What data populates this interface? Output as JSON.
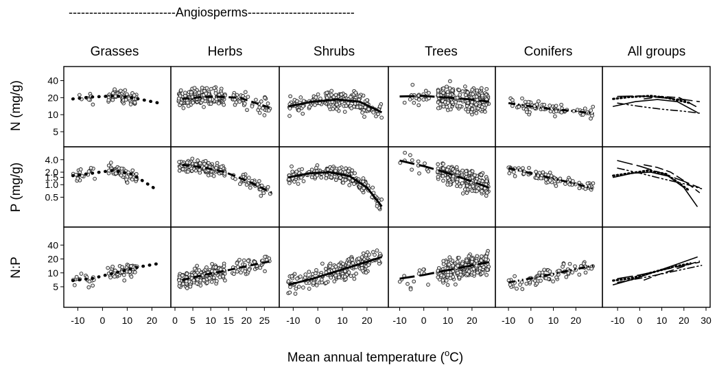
{
  "banner": "--------------------------Angiosperms--------------------------",
  "xlabel": "Mean annual temperature (",
  "xlabel_sup": "o",
  "xlabel_unit": "C)",
  "chart_data": {
    "type": "scatter",
    "layout": "small multiples grid, 3 rows x 6 columns",
    "groups": [
      "Grasses",
      "Herbs",
      "Shrubs",
      "Trees",
      "Conifers",
      "All groups"
    ],
    "rows": [
      {
        "key": "N",
        "label": "N (mg/g)",
        "ticks": [
          5,
          10,
          20,
          40
        ],
        "tick_labels": [
          "5",
          "10",
          "20",
          "40"
        ],
        "scale": "log",
        "ylim": [
          3.2,
          60
        ]
      },
      {
        "key": "P",
        "label": "P (mg/g)",
        "ticks": [
          0.5,
          1.0,
          1.5,
          2.0,
          4.0
        ],
        "tick_labels": [
          "0.5",
          "1.0",
          "1.5",
          "2.0",
          "4.0"
        ],
        "scale": "log",
        "ylim": [
          0.12,
          6.5
        ]
      },
      {
        "key": "NP",
        "label": "N:P",
        "ticks": [
          5,
          10,
          20,
          40
        ],
        "tick_labels": [
          "5",
          "10",
          "20",
          "40"
        ],
        "scale": "log",
        "ylim": [
          2.2,
          80
        ]
      }
    ],
    "x_axes": [
      {
        "ticks": [
          -10,
          0,
          10,
          20
        ],
        "xlim": [
          -14,
          26
        ]
      },
      {
        "ticks": [
          0,
          5,
          10,
          15,
          20,
          25
        ],
        "xlim": [
          0,
          28
        ]
      },
      {
        "ticks": [
          -10,
          0,
          10,
          20
        ],
        "xlim": [
          -14,
          27
        ]
      },
      {
        "ticks": [
          -10,
          0,
          10,
          20
        ],
        "xlim": [
          -13,
          28
        ]
      },
      {
        "ticks": [
          -10,
          0,
          10,
          20
        ],
        "xlim": [
          -14,
          30
        ]
      },
      {
        "ticks": [
          -10,
          0,
          10,
          20,
          30
        ],
        "xlim": [
          -15,
          30
        ]
      }
    ],
    "trends": {
      "N": [
        [
          [
            -12,
            19
          ],
          [
            -5,
            20.5
          ],
          [
            5,
            21.5
          ],
          [
            12,
            20
          ],
          [
            23,
            16
          ]
        ],
        [
          [
            2,
            19
          ],
          [
            10,
            21
          ],
          [
            18,
            20
          ],
          [
            27,
            13
          ]
        ],
        [
          [
            -12,
            14
          ],
          [
            -2,
            17
          ],
          [
            8,
            18.5
          ],
          [
            17,
            17
          ],
          [
            26,
            11
          ]
        ],
        [
          [
            -10,
            21
          ],
          [
            0,
            21.5
          ],
          [
            10,
            20
          ],
          [
            20,
            18.5
          ],
          [
            27,
            17
          ]
        ],
        [
          [
            -10,
            16
          ],
          [
            0,
            14
          ],
          [
            10,
            12.5
          ],
          [
            20,
            11.5
          ],
          [
            28,
            10.5
          ]
        ]
      ],
      "P": [
        [
          [
            -12,
            1.65
          ],
          [
            -4,
            1.9
          ],
          [
            4,
            2.2
          ],
          [
            12,
            1.8
          ],
          [
            22,
            0.75
          ]
        ],
        [
          [
            2,
            3.0
          ],
          [
            8,
            2.6
          ],
          [
            14,
            2.0
          ],
          [
            20,
            1.25
          ],
          [
            27,
            0.65
          ]
        ],
        [
          [
            -12,
            1.5
          ],
          [
            -3,
            1.9
          ],
          [
            5,
            2.0
          ],
          [
            13,
            1.6
          ],
          [
            20,
            0.85
          ],
          [
            26,
            0.3
          ]
        ],
        [
          [
            -10,
            3.8
          ],
          [
            0,
            2.8
          ],
          [
            10,
            1.9
          ],
          [
            20,
            1.2
          ],
          [
            27,
            0.85
          ]
        ],
        [
          [
            -10,
            2.5
          ],
          [
            0,
            1.9
          ],
          [
            10,
            1.4
          ],
          [
            20,
            1.05
          ],
          [
            28,
            0.8
          ]
        ]
      ],
      "NP": [
        [
          [
            -12,
            6.8
          ],
          [
            -4,
            7.6
          ],
          [
            5,
            10
          ],
          [
            15,
            13.5
          ],
          [
            23,
            16
          ]
        ],
        [
          [
            2,
            7
          ],
          [
            8,
            9
          ],
          [
            15,
            11.5
          ],
          [
            22,
            15
          ],
          [
            27,
            18
          ]
        ],
        [
          [
            -12,
            5.5
          ],
          [
            -2,
            7.5
          ],
          [
            8,
            11
          ],
          [
            17,
            15.5
          ],
          [
            26,
            22
          ]
        ],
        [
          [
            -10,
            7.5
          ],
          [
            0,
            9
          ],
          [
            10,
            11.5
          ],
          [
            20,
            14.5
          ],
          [
            27,
            17
          ]
        ],
        [
          [
            -10,
            6.2
          ],
          [
            0,
            7.6
          ],
          [
            10,
            9.5
          ],
          [
            20,
            12
          ],
          [
            28,
            14.5
          ]
        ]
      ]
    },
    "all_groups_line_styles": [
      "dotted",
      "dashed",
      "solid",
      "long-dash",
      "dash-dot-dot"
    ]
  }
}
